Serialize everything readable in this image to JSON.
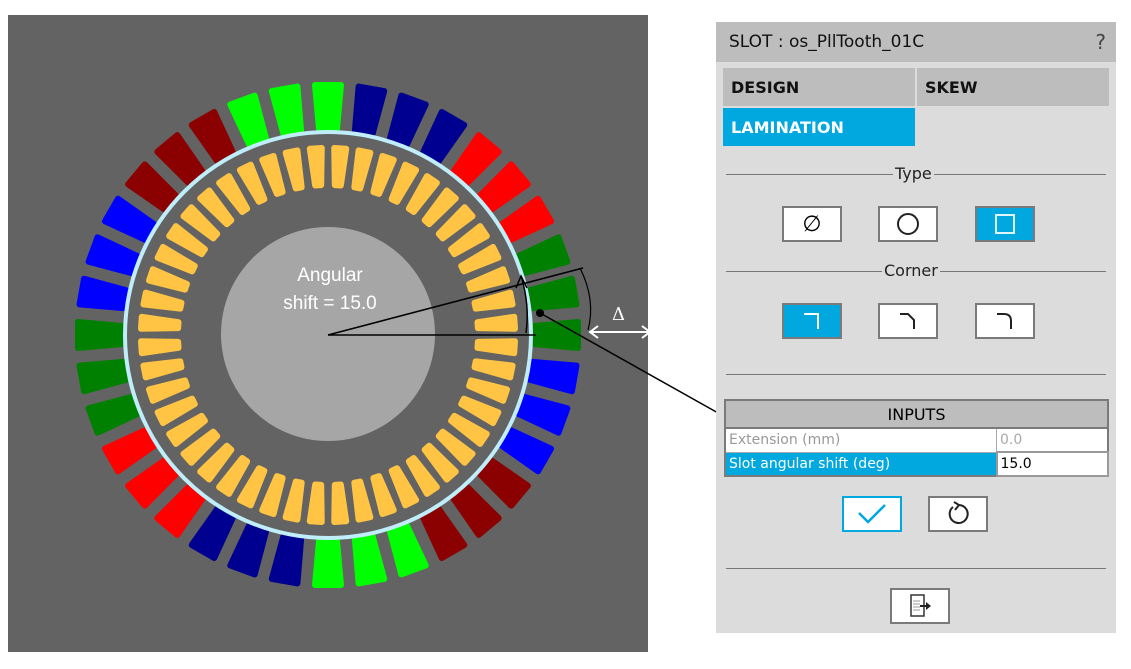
{
  "viewer": {
    "annotation_text_line1": "Angular",
    "annotation_text_line2": "shift = 15.0",
    "delta_symbol": "Δ",
    "phase_colors": [
      "#00ff00",
      "#000090",
      "#ff0000",
      "#008000",
      "#0000ff",
      "#8b0000"
    ],
    "rotor_slot_color": "#ffc444",
    "airgap_color": "#bfeefa",
    "shaft_color": "#a6a6a6"
  },
  "panel": {
    "title": "SLOT : os_PllTooth_01C",
    "help": "?",
    "tabs": [
      {
        "label": "DESIGN",
        "active": false
      },
      {
        "label": "SKEW",
        "active": false
      },
      {
        "label": "LAMINATION",
        "active": true
      }
    ],
    "type_label": "Type",
    "type_options": [
      "none-icon",
      "circle-icon",
      "square-icon"
    ],
    "type_selected": "square-icon",
    "corner_label": "Corner",
    "corner_options": [
      "sharp-corner-icon",
      "chamfer-corner-icon",
      "round-corner-icon"
    ],
    "corner_selected": "sharp-corner-icon",
    "inputs": {
      "header": "INPUTS",
      "rows": [
        {
          "label": "Extension (mm)",
          "value": "0.0",
          "enabled": false
        },
        {
          "label": "Slot angular shift (deg)",
          "value": "15.0",
          "enabled": true
        }
      ]
    },
    "accent": "#00a8df"
  }
}
